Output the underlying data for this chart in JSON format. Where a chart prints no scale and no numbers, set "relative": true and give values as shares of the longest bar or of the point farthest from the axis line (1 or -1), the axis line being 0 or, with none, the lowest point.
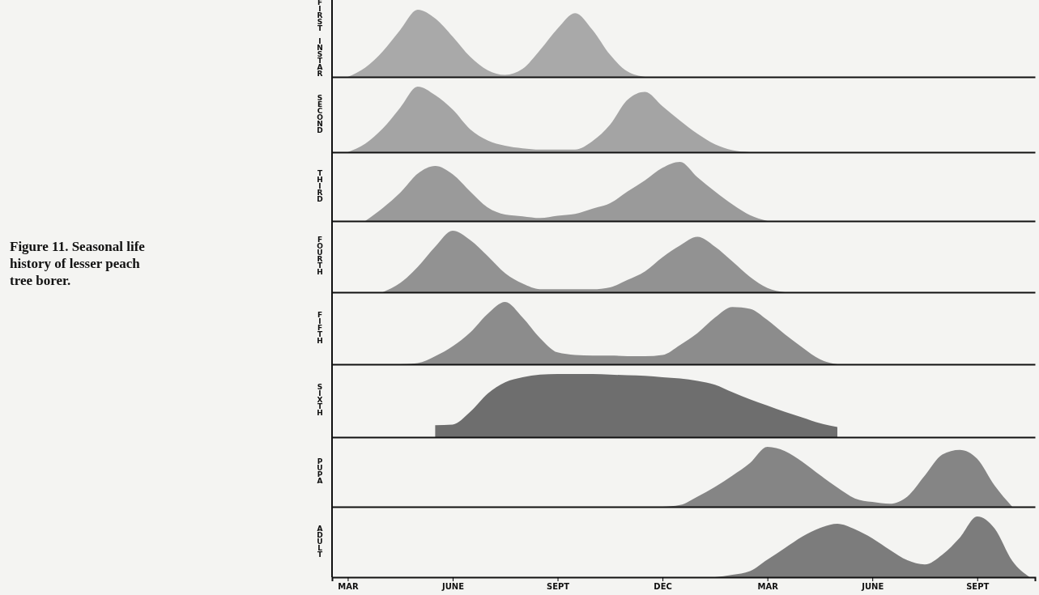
{
  "chart_data": [
    {
      "type": "area",
      "title": "FIRST INSTAR",
      "relative": true,
      "annotations": [
        "Figure 11. Seasonal life history of lesser peach tree borer."
      ],
      "series": [
        {
          "color": "#a9a9a9",
          "values": [
            0,
            0.14,
            0.38,
            0.7,
            1.0,
            0.87,
            0.6,
            0.3,
            0.1,
            0.03,
            0.12,
            0.4,
            0.72,
            0.95,
            0.7,
            0.33,
            0.08,
            0,
            null,
            null,
            null,
            null,
            null,
            null,
            null,
            null,
            null,
            null,
            null,
            null,
            null,
            null,
            null,
            null,
            null,
            null,
            null,
            null,
            null,
            null
          ]
        }
      ]
    },
    {
      "type": "area",
      "title": "SECOND",
      "relative": true,
      "series": [
        {
          "color": "#a4a4a4",
          "values": [
            0,
            0.13,
            0.36,
            0.68,
            1.0,
            0.87,
            0.65,
            0.35,
            0.18,
            0.1,
            0.06,
            0.04,
            0.04,
            0.04,
            0.17,
            0.42,
            0.8,
            0.92,
            0.7,
            0.48,
            0.28,
            0.12,
            0.03,
            0,
            null,
            null,
            null,
            null,
            null,
            null,
            null,
            null,
            null,
            null,
            null,
            null,
            null,
            null,
            null,
            null
          ]
        }
      ]
    },
    {
      "type": "area",
      "title": "THIRD",
      "relative": true,
      "series": [
        {
          "color": "#9a9a9a",
          "values": [
            null,
            0,
            0.22,
            0.48,
            0.8,
            0.93,
            0.79,
            0.5,
            0.23,
            0.11,
            0.08,
            0.05,
            0.09,
            0.12,
            0.21,
            0.3,
            0.5,
            0.69,
            0.9,
            1.0,
            0.74,
            0.5,
            0.28,
            0.1,
            0,
            null,
            null,
            null,
            null,
            null,
            null,
            null,
            null,
            null,
            null,
            null,
            null,
            null,
            null,
            null
          ]
        }
      ]
    },
    {
      "type": "area",
      "title": "FOURTH",
      "relative": true,
      "series": [
        {
          "color": "#929292",
          "values": [
            null,
            null,
            0,
            0.15,
            0.41,
            0.74,
            1.0,
            0.85,
            0.59,
            0.31,
            0.14,
            0.05,
            0.05,
            0.05,
            0.05,
            0.08,
            0.2,
            0.34,
            0.57,
            0.76,
            0.9,
            0.74,
            0.5,
            0.25,
            0.07,
            0,
            null,
            null,
            null,
            null,
            null,
            null,
            null,
            null,
            null,
            null,
            null,
            null,
            null,
            null
          ]
        }
      ]
    },
    {
      "type": "area",
      "title": "FIFTH",
      "relative": true,
      "series": [
        {
          "color": "#8c8c8c",
          "values": [
            null,
            null,
            null,
            0,
            0.02,
            0.13,
            0.29,
            0.51,
            0.81,
            1.0,
            0.75,
            0.42,
            0.19,
            0.15,
            0.14,
            0.14,
            0.13,
            0.13,
            0.15,
            0.31,
            0.5,
            0.75,
            0.92,
            0.89,
            0.71,
            0.48,
            0.27,
            0.08,
            0,
            null,
            null,
            null,
            null,
            null,
            null,
            null,
            null,
            null,
            null,
            null
          ]
        }
      ]
    },
    {
      "type": "area",
      "title": "SIXTH",
      "relative": true,
      "series": [
        {
          "color": "#6e6e6e",
          "values": [
            null,
            null,
            null,
            null,
            null,
            0.19,
            0.2,
            0.4,
            0.69,
            0.87,
            0.95,
            0.99,
            1.0,
            1.0,
            1.0,
            0.99,
            0.98,
            0.97,
            0.95,
            0.93,
            0.89,
            0.83,
            0.71,
            0.6,
            0.5,
            0.4,
            0.31,
            0.22,
            0.16,
            null,
            null,
            null,
            null,
            null,
            null,
            null,
            null,
            null,
            null,
            null
          ]
        }
      ]
    },
    {
      "type": "area",
      "title": "PUPA",
      "relative": true,
      "series": [
        {
          "color": "#858585",
          "values": [
            null,
            null,
            null,
            null,
            null,
            null,
            null,
            null,
            null,
            null,
            null,
            null,
            null,
            null,
            null,
            null,
            null,
            null,
            0,
            0.03,
            0.17,
            0.33,
            0.52,
            0.73,
            1.0,
            0.93,
            0.75,
            0.53,
            0.32,
            0.14,
            0.08,
            0.05,
            0.17,
            0.52,
            0.87,
            0.95,
            0.8,
            0.35,
            0,
            null
          ]
        }
      ]
    },
    {
      "type": "area",
      "title": "ADULT",
      "relative": true,
      "categories": [
        "MAR",
        null,
        null,
        null,
        null,
        null,
        "JUNE",
        null,
        null,
        null,
        null,
        null,
        "SEPT",
        null,
        null,
        null,
        null,
        null,
        "DEC",
        null,
        null,
        null,
        null,
        null,
        "MAR",
        null,
        null,
        null,
        null,
        null,
        "JUNE",
        null,
        null,
        null,
        null,
        null,
        "SEPT",
        null,
        null,
        null
      ],
      "series": [
        {
          "color": "#7c7c7c",
          "values": [
            null,
            null,
            null,
            null,
            null,
            null,
            null,
            null,
            null,
            null,
            null,
            null,
            null,
            null,
            null,
            null,
            null,
            null,
            null,
            null,
            null,
            0,
            0.04,
            0.1,
            0.29,
            0.48,
            0.67,
            0.81,
            0.88,
            0.79,
            0.64,
            0.45,
            0.28,
            0.21,
            0.37,
            0.65,
            1.0,
            0.8,
            0.27,
            0
          ]
        }
      ]
    }
  ]
}
